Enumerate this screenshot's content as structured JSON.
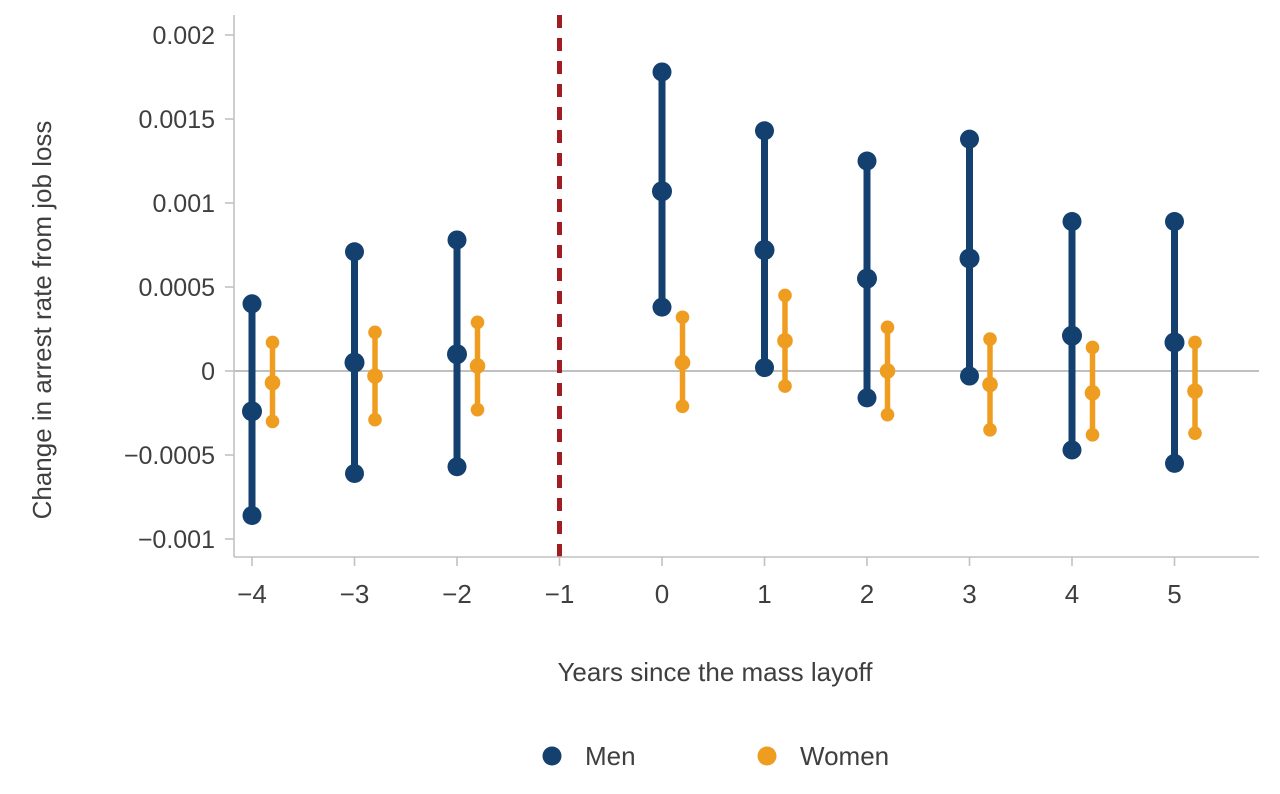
{
  "chart_data": {
    "type": "scatter",
    "subtype": "dot-and-ci-range-plot",
    "xlabel": "Years since the mass layoff",
    "ylabel": "Change in arrest rate from job loss",
    "xlim": [
      -4.2,
      5.8
    ],
    "ylim": [
      -0.00112,
      0.00212
    ],
    "grid": "zero-line-only",
    "legend_position": "bottom-center",
    "xticks": [
      {
        "v": -4,
        "label": "−4"
      },
      {
        "v": -3,
        "label": "−3"
      },
      {
        "v": -2,
        "label": "−2"
      },
      {
        "v": -1,
        "label": "−1"
      },
      {
        "v": 0,
        "label": "0"
      },
      {
        "v": 1,
        "label": "1"
      },
      {
        "v": 2,
        "label": "2"
      },
      {
        "v": 3,
        "label": "3"
      },
      {
        "v": 4,
        "label": "4"
      },
      {
        "v": 5,
        "label": "5"
      }
    ],
    "yticks": [
      {
        "v": 0.002,
        "label": "0.002"
      },
      {
        "v": 0.0015,
        "label": "0.0015"
      },
      {
        "v": 0.001,
        "label": "0.001"
      },
      {
        "v": 0.0005,
        "label": "0.0005"
      },
      {
        "v": 0,
        "label": "0"
      },
      {
        "v": -0.0005,
        "label": "−0.0005"
      },
      {
        "v": -0.001,
        "label": "−0.001"
      }
    ],
    "reference_line": {
      "x": -1,
      "style": "dashed",
      "color": "#A11D21"
    },
    "zero_line": {
      "y": 0,
      "color": "#9a9a9a"
    },
    "series": [
      {
        "name": "Men",
        "color": "#13406F",
        "x_offset_units": 0,
        "points": [
          {
            "x": -4,
            "est": -0.00024,
            "lo": -0.00086,
            "hi": 0.0004
          },
          {
            "x": -3,
            "est": 5e-05,
            "lo": -0.00061,
            "hi": 0.00071
          },
          {
            "x": -2,
            "est": 0.0001,
            "lo": -0.00057,
            "hi": 0.00078
          },
          {
            "x": 0,
            "est": 0.00107,
            "lo": 0.00038,
            "hi": 0.00178
          },
          {
            "x": 1,
            "est": 0.00072,
            "lo": 2e-05,
            "hi": 0.00143
          },
          {
            "x": 2,
            "est": 0.00055,
            "lo": -0.00016,
            "hi": 0.00125
          },
          {
            "x": 3,
            "est": 0.00067,
            "lo": -3e-05,
            "hi": 0.00138
          },
          {
            "x": 4,
            "est": 0.00021,
            "lo": -0.00047,
            "hi": 0.00089
          },
          {
            "x": 5,
            "est": 0.00017,
            "lo": -0.00055,
            "hi": 0.00089
          }
        ]
      },
      {
        "name": "Women",
        "color": "#EF9D20",
        "x_offset_units": 0.2,
        "points": [
          {
            "x": -4,
            "est": -7e-05,
            "lo": -0.0003,
            "hi": 0.00017
          },
          {
            "x": -3,
            "est": -3e-05,
            "lo": -0.00029,
            "hi": 0.00023
          },
          {
            "x": -2,
            "est": 3e-05,
            "lo": -0.00023,
            "hi": 0.00029
          },
          {
            "x": 0,
            "est": 5e-05,
            "lo": -0.00021,
            "hi": 0.00032
          },
          {
            "x": 1,
            "est": 0.00018,
            "lo": -9e-05,
            "hi": 0.00045
          },
          {
            "x": 2,
            "est": 0.0,
            "lo": -0.00026,
            "hi": 0.00026
          },
          {
            "x": 3,
            "est": -8e-05,
            "lo": -0.00035,
            "hi": 0.00019
          },
          {
            "x": 4,
            "est": -0.00013,
            "lo": -0.00038,
            "hi": 0.00014
          },
          {
            "x": 5,
            "est": -0.00012,
            "lo": -0.00037,
            "hi": 0.00017
          }
        ]
      }
    ],
    "colors": {
      "background": "#ffffff",
      "axis": "#c2c2c2",
      "zero_line": "#9a9a9a",
      "text": "#3f3f3f",
      "men": "#13406F",
      "women": "#EF9D20",
      "reference": "#A11D21"
    }
  }
}
